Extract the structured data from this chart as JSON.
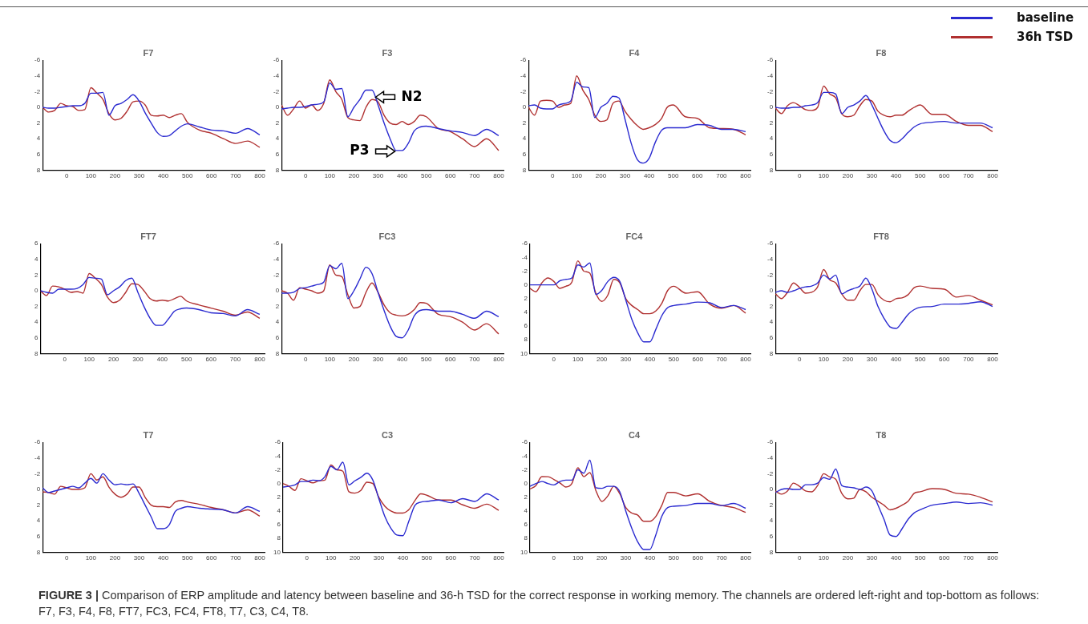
{
  "chart_data": [
    {
      "type": "line",
      "title": "F7",
      "x": [
        -100,
        -75,
        -50,
        -25,
        0,
        25,
        50,
        75,
        100,
        125,
        150,
        175,
        200,
        225,
        250,
        275,
        300,
        325,
        350,
        375,
        400,
        425,
        450,
        475,
        500,
        550,
        600,
        650,
        700,
        750,
        800
      ],
      "xlim": [
        -100,
        820
      ],
      "xticks": [
        0,
        100,
        200,
        300,
        400,
        500,
        600,
        700,
        800
      ],
      "ylim": [
        8,
        -6
      ],
      "yticks": [
        -6,
        -4,
        -2,
        0,
        2,
        4,
        6,
        8
      ],
      "grid": false,
      "legend": false,
      "marker": "none",
      "series": [
        {
          "color": "#2a2ad0",
          "values": [
            0,
            0.1,
            0.1,
            0,
            -0.1,
            -0.2,
            -0.2,
            -0.5,
            -1.8,
            -1.8,
            -1.9,
            1.0,
            -0.2,
            -0.5,
            -1.0,
            -1.6,
            -0.8,
            0.7,
            2.0,
            3.2,
            3.7,
            3.6,
            3.0,
            2.4,
            2.1,
            2.5,
            2.9,
            3.0,
            3.3,
            2.7,
            3.5
          ]
        },
        {
          "color": "#b03030",
          "values": [
            0,
            0.6,
            0.4,
            -0.5,
            -0.2,
            -0.1,
            0.4,
            0.3,
            -2.5,
            -1.8,
            -1.0,
            0.8,
            1.6,
            1.4,
            0.5,
            -0.7,
            -0.8,
            -0.3,
            1.0,
            1.1,
            1.0,
            1.3,
            1.0,
            0.8,
            1.9,
            2.9,
            3.3,
            4.0,
            4.6,
            4.3,
            5.1
          ]
        }
      ]
    },
    {
      "type": "line",
      "title": "F3",
      "x": [
        -100,
        -75,
        -50,
        -25,
        0,
        25,
        50,
        75,
        100,
        125,
        150,
        175,
        200,
        225,
        250,
        275,
        300,
        325,
        350,
        375,
        400,
        425,
        450,
        475,
        500,
        550,
        600,
        650,
        700,
        750,
        800
      ],
      "xlim": [
        -100,
        820
      ],
      "xticks": [
        0,
        100,
        200,
        300,
        400,
        500,
        600,
        700,
        800
      ],
      "ylim": [
        8,
        -6
      ],
      "yticks": [
        -6,
        -4,
        -2,
        0,
        2,
        4,
        6,
        8
      ],
      "grid": false,
      "legend": false,
      "marker": "none",
      "annotations": [
        {
          "text": "N2",
          "x": 290,
          "y": -1.3
        },
        {
          "text": "P3",
          "x": 370,
          "y": 5.6
        }
      ],
      "series": [
        {
          "color": "#2a2ad0",
          "values": [
            0.2,
            0.1,
            0,
            0,
            -0.1,
            -0.3,
            -0.4,
            -0.7,
            -3.1,
            -2.3,
            -2.4,
            1.2,
            0.0,
            -1.0,
            -2.2,
            -2.2,
            -0.3,
            2.0,
            4.0,
            5.5,
            5.5,
            4.6,
            3.0,
            2.5,
            2.4,
            2.7,
            3.0,
            3.2,
            3.6,
            2.8,
            3.6
          ]
        },
        {
          "color": "#b03030",
          "values": [
            -0.3,
            1.0,
            0.2,
            -0.8,
            0.1,
            -0.3,
            0.4,
            -0.5,
            -3.5,
            -2.0,
            -1.0,
            1.3,
            1.6,
            1.7,
            0.0,
            -1.0,
            -0.7,
            1.0,
            2.0,
            2.2,
            1.8,
            2.2,
            1.8,
            1.0,
            1.2,
            2.7,
            3.1,
            4.0,
            5.0,
            4.0,
            5.5
          ]
        }
      ]
    },
    {
      "type": "line",
      "title": "F4",
      "x": [
        -100,
        -75,
        -50,
        -25,
        0,
        25,
        50,
        75,
        100,
        125,
        150,
        175,
        200,
        225,
        250,
        275,
        300,
        325,
        350,
        375,
        400,
        425,
        450,
        475,
        500,
        550,
        600,
        650,
        700,
        750,
        800
      ],
      "xlim": [
        -100,
        820
      ],
      "xticks": [
        0,
        100,
        200,
        300,
        400,
        500,
        600,
        700,
        800
      ],
      "ylim": [
        8,
        -6
      ],
      "yticks": [
        -6,
        -4,
        -2,
        0,
        2,
        4,
        6,
        8
      ],
      "grid": false,
      "legend": false,
      "marker": "none",
      "series": [
        {
          "color": "#2a2ad0",
          "values": [
            -0.2,
            -0.3,
            0.1,
            0.2,
            0.2,
            -0.3,
            -0.5,
            -0.8,
            -3.2,
            -2.6,
            -2.5,
            1.3,
            0.0,
            -0.5,
            -1.4,
            -1.2,
            1.5,
            4.5,
            6.6,
            7.1,
            6.5,
            4.5,
            3.0,
            2.6,
            2.6,
            2.6,
            2.2,
            2.3,
            2.8,
            2.8,
            3.1
          ]
        },
        {
          "color": "#b03030",
          "values": [
            0,
            1.0,
            -0.8,
            -0.9,
            -0.8,
            0.0,
            -0.3,
            -0.5,
            -4.0,
            -2.2,
            -1.0,
            1.0,
            1.8,
            1.6,
            -0.5,
            -0.8,
            0.5,
            1.5,
            2.3,
            2.8,
            2.6,
            2.2,
            1.5,
            0.0,
            -0.3,
            1.2,
            1.4,
            2.6,
            2.7,
            2.8,
            3.5
          ]
        }
      ]
    },
    {
      "type": "line",
      "title": "F8",
      "x": [
        -100,
        -75,
        -50,
        -25,
        0,
        25,
        50,
        75,
        100,
        125,
        150,
        175,
        200,
        225,
        250,
        275,
        300,
        325,
        350,
        375,
        400,
        425,
        450,
        475,
        500,
        550,
        600,
        650,
        700,
        750,
        800
      ],
      "xlim": [
        -100,
        820
      ],
      "xticks": [
        0,
        100,
        200,
        300,
        400,
        500,
        600,
        700,
        800
      ],
      "ylim": [
        8,
        -6
      ],
      "yticks": [
        -6,
        -4,
        -2,
        0,
        2,
        4,
        6,
        8
      ],
      "grid": false,
      "legend": "top right",
      "marker": "none",
      "series": [
        {
          "name": "baseline",
          "color": "#2a2ad0",
          "values": [
            0,
            0.1,
            0.1,
            0,
            0,
            -0.2,
            -0.3,
            -0.6,
            -1.9,
            -1.9,
            -1.7,
            0.8,
            0,
            -0.3,
            -0.8,
            -1.5,
            -0.3,
            1.4,
            3.0,
            4.2,
            4.5,
            4.0,
            3.2,
            2.5,
            2.1,
            1.9,
            1.8,
            2.0,
            2.0,
            2.0,
            2.6
          ]
        },
        {
          "name": "36h TSD",
          "color": "#b03030",
          "values": [
            0.1,
            0.8,
            -0.2,
            -0.6,
            -0.2,
            0.3,
            0.4,
            0,
            -2.7,
            -1.7,
            -1.2,
            0.8,
            1.2,
            1.0,
            -0.2,
            -1.0,
            -0.8,
            0.5,
            1.0,
            1.2,
            1.0,
            1.0,
            0.5,
            0,
            -0.3,
            0.9,
            0.9,
            1.8,
            2.3,
            2.3,
            3.1
          ]
        }
      ]
    },
    {
      "type": "line",
      "title": "FT7",
      "x": [
        -100,
        -75,
        -50,
        -25,
        0,
        25,
        50,
        75,
        100,
        125,
        150,
        175,
        200,
        225,
        250,
        275,
        300,
        325,
        350,
        375,
        400,
        425,
        450,
        475,
        500,
        550,
        600,
        650,
        700,
        750,
        800
      ],
      "xlim": [
        -100,
        820
      ],
      "xticks": [
        0,
        100,
        200,
        300,
        400,
        500,
        600,
        700,
        800
      ],
      "ylim": [
        8,
        -6
      ],
      "yticks": [
        {
          "value": -6,
          "label": "6"
        },
        {
          "value": -4,
          "label": "4"
        },
        {
          "value": -2,
          "label": "2"
        },
        0,
        2,
        4,
        6,
        8
      ],
      "grid": false,
      "legend": false,
      "marker": "none",
      "series": [
        {
          "color": "#2a2ad0",
          "values": [
            0,
            0.2,
            0.3,
            -0.2,
            -0.2,
            -0.2,
            -0.3,
            -0.8,
            -1.7,
            -1.6,
            -1.5,
            0.5,
            0,
            -0.5,
            -1.3,
            -1.6,
            0.2,
            2.0,
            3.5,
            4.4,
            4.4,
            3.6,
            2.6,
            2.3,
            2.2,
            2.4,
            2.8,
            2.9,
            3.2,
            2.4,
            3.0
          ]
        },
        {
          "color": "#b03030",
          "values": [
            0,
            0.6,
            -0.6,
            -0.5,
            -0.2,
            0.2,
            0.1,
            0.3,
            -2.2,
            -1.6,
            -0.8,
            0.8,
            1.5,
            1.2,
            0.2,
            -0.9,
            -0.8,
            0,
            1.0,
            1.3,
            1.2,
            1.3,
            1.0,
            0.7,
            1.3,
            1.8,
            2.2,
            2.6,
            3.1,
            2.7,
            3.5
          ]
        }
      ]
    },
    {
      "type": "line",
      "title": "FC3",
      "x": [
        -100,
        -75,
        -50,
        -25,
        0,
        25,
        50,
        75,
        100,
        125,
        150,
        175,
        200,
        225,
        250,
        275,
        300,
        325,
        350,
        375,
        400,
        425,
        450,
        475,
        500,
        550,
        600,
        650,
        700,
        750,
        800
      ],
      "xlim": [
        -100,
        820
      ],
      "xticks": [
        0,
        100,
        200,
        300,
        400,
        500,
        600,
        700,
        800
      ],
      "ylim": [
        8,
        -6
      ],
      "yticks": [
        -6,
        -4,
        -2,
        0,
        2,
        4,
        6,
        8
      ],
      "grid": false,
      "legend": false,
      "marker": "none",
      "series": [
        {
          "color": "#2a2ad0",
          "values": [
            0.3,
            0.3,
            0.2,
            -0.3,
            -0.4,
            -0.6,
            -0.8,
            -1.1,
            -3.2,
            -2.8,
            -3.5,
            1.0,
            0.0,
            -1.5,
            -3.0,
            -2.2,
            0.2,
            2.5,
            4.5,
            5.8,
            6.0,
            5.0,
            3.2,
            2.5,
            2.4,
            2.6,
            2.6,
            3.0,
            3.5,
            2.6,
            3.3
          ]
        },
        {
          "color": "#b03030",
          "values": [
            0,
            0.3,
            1.2,
            -0.4,
            -0.2,
            0,
            0.3,
            0,
            -3.3,
            -2.0,
            -1.8,
            0.5,
            2.2,
            2.0,
            0.2,
            -1.0,
            0.2,
            1.8,
            2.8,
            3.1,
            3.2,
            3.0,
            2.4,
            1.5,
            1.6,
            3.0,
            3.3,
            4.0,
            5.0,
            4.2,
            5.5
          ]
        }
      ]
    },
    {
      "type": "line",
      "title": "FC4",
      "x": [
        -100,
        -75,
        -50,
        -25,
        0,
        25,
        50,
        75,
        100,
        125,
        150,
        175,
        200,
        225,
        250,
        275,
        300,
        325,
        350,
        375,
        400,
        425,
        450,
        475,
        500,
        550,
        600,
        650,
        700,
        750,
        800
      ],
      "xlim": [
        -100,
        820
      ],
      "xticks": [
        0,
        100,
        200,
        300,
        400,
        500,
        600,
        700,
        800
      ],
      "ylim": [
        10,
        -6
      ],
      "yticks": [
        -6,
        -4,
        -2,
        0,
        2,
        4,
        6,
        8,
        10
      ],
      "grid": false,
      "legend": false,
      "marker": "none",
      "series": [
        {
          "color": "#2a2ad0",
          "values": [
            0,
            0,
            0,
            0,
            0,
            -0.6,
            -0.8,
            -1.0,
            -2.9,
            -2.6,
            -3.2,
            1.4,
            0.8,
            -0.5,
            -1.1,
            -0.5,
            2.2,
            5.0,
            7.0,
            8.3,
            8.3,
            6.5,
            4.5,
            3.3,
            3.0,
            2.8,
            2.5,
            2.6,
            3.3,
            3.0,
            3.6
          ]
        },
        {
          "color": "#b03030",
          "values": [
            0.5,
            1.0,
            -0.3,
            -1.0,
            -0.5,
            0.5,
            0.2,
            -0.4,
            -3.5,
            -2.0,
            -1.7,
            1.2,
            2.4,
            1.5,
            -0.8,
            -0.3,
            2.0,
            3.0,
            3.6,
            4.2,
            4.2,
            3.8,
            2.7,
            0.8,
            0.2,
            1.2,
            1.0,
            2.8,
            3.4,
            3.0,
            4.1
          ]
        }
      ]
    },
    {
      "type": "line",
      "title": "FT8",
      "x": [
        -100,
        -75,
        -50,
        -25,
        0,
        25,
        50,
        75,
        100,
        125,
        150,
        175,
        200,
        225,
        250,
        275,
        300,
        325,
        350,
        375,
        400,
        425,
        450,
        475,
        500,
        550,
        600,
        650,
        700,
        750,
        800
      ],
      "xlim": [
        -100,
        820
      ],
      "xticks": [
        0,
        100,
        200,
        300,
        400,
        500,
        600,
        700,
        800
      ],
      "ylim": [
        8,
        -6
      ],
      "yticks": [
        -6,
        -4,
        -2,
        0,
        2,
        4,
        6,
        8
      ],
      "grid": false,
      "legend": false,
      "marker": "none",
      "series": [
        {
          "color": "#2a2ad0",
          "values": [
            0.2,
            0,
            0.2,
            0,
            -0.3,
            -0.5,
            -0.6,
            -1.0,
            -2.0,
            -1.5,
            -2.0,
            0.4,
            0,
            -0.3,
            -0.6,
            -1.6,
            -0.2,
            2.0,
            3.5,
            4.6,
            4.8,
            4.0,
            3.0,
            2.4,
            2.1,
            2.0,
            1.7,
            1.7,
            1.6,
            1.4,
            2.0
          ]
        },
        {
          "color": "#b03030",
          "values": [
            0.4,
            1.0,
            0.2,
            -1.0,
            -0.4,
            0.3,
            0.2,
            -0.5,
            -2.7,
            -1.4,
            -1.0,
            0.4,
            1.2,
            1.2,
            0,
            -0.8,
            -0.8,
            0.5,
            1.2,
            1.4,
            1.0,
            0.9,
            0.5,
            -0.4,
            -0.6,
            -0.3,
            -0.2,
            0.8,
            0.6,
            1.2,
            1.8
          ]
        }
      ]
    },
    {
      "type": "line",
      "title": "T7",
      "x": [
        -100,
        -75,
        -50,
        -25,
        0,
        25,
        50,
        75,
        100,
        125,
        150,
        175,
        200,
        225,
        250,
        275,
        300,
        325,
        350,
        375,
        400,
        425,
        450,
        475,
        500,
        550,
        600,
        650,
        700,
        750,
        800
      ],
      "xlim": [
        -100,
        820
      ],
      "xticks": [
        0,
        100,
        200,
        300,
        400,
        500,
        600,
        700,
        800
      ],
      "ylim": [
        8,
        -6
      ],
      "yticks": [
        -6,
        -4,
        -2,
        0,
        2,
        4,
        6,
        8
      ],
      "grid": false,
      "legend": false,
      "marker": "none",
      "series": [
        {
          "color": "#2a2ad0",
          "values": [
            -0.2,
            0.4,
            0.2,
            0,
            -0.2,
            -0.4,
            -0.2,
            -0.8,
            -1.4,
            -0.8,
            -2.0,
            -1.2,
            -0.6,
            -0.7,
            -0.6,
            -0.7,
            0.5,
            2.0,
            3.5,
            5.0,
            5.0,
            4.5,
            2.8,
            2.4,
            2.2,
            2.4,
            2.5,
            2.6,
            3.0,
            2.2,
            2.8
          ]
        },
        {
          "color": "#b03030",
          "values": [
            0.3,
            0.4,
            0.6,
            -0.4,
            -0.2,
            0,
            0,
            -0.2,
            -2.0,
            -1.2,
            -1.6,
            -0.3,
            0.6,
            1.0,
            0.6,
            -0.3,
            -0.3,
            1.0,
            2.0,
            2.2,
            2.2,
            2.3,
            1.6,
            1.4,
            1.6,
            1.9,
            2.3,
            2.6,
            3.0,
            2.6,
            3.4
          ]
        }
      ]
    },
    {
      "type": "line",
      "title": "C3",
      "x": [
        -100,
        -75,
        -50,
        -25,
        0,
        25,
        50,
        75,
        100,
        125,
        150,
        175,
        200,
        225,
        250,
        275,
        300,
        325,
        350,
        375,
        400,
        425,
        450,
        475,
        500,
        550,
        600,
        650,
        700,
        750,
        800
      ],
      "xlim": [
        -100,
        820
      ],
      "xticks": [
        0,
        100,
        200,
        300,
        400,
        500,
        600,
        700,
        800
      ],
      "ylim": [
        10,
        -6
      ],
      "yticks": [
        -6,
        -4,
        -2,
        0,
        2,
        4,
        6,
        8,
        10
      ],
      "grid": false,
      "legend": false,
      "marker": "none",
      "series": [
        {
          "color": "#2a2ad0",
          "values": [
            0.5,
            0.4,
            0.2,
            -0.3,
            -0.3,
            -0.5,
            -0.4,
            -1.0,
            -2.5,
            -2.0,
            -3.1,
            0.2,
            -0.4,
            -0.9,
            -1.5,
            -0.5,
            2.2,
            4.8,
            6.5,
            7.5,
            7.6,
            5.5,
            3.2,
            2.7,
            2.6,
            2.4,
            2.8,
            2.2,
            2.6,
            1.5,
            2.4
          ]
        },
        {
          "color": "#b03030",
          "values": [
            0,
            0.4,
            1.0,
            -0.7,
            -0.4,
            -0.1,
            -0.4,
            -0.5,
            -2.7,
            -2.0,
            -1.8,
            1.2,
            1.4,
            1.0,
            -0.2,
            0,
            2.0,
            3.3,
            4.0,
            4.3,
            4.3,
            3.8,
            2.5,
            1.5,
            1.7,
            2.4,
            2.4,
            3.1,
            3.6,
            3.0,
            3.9
          ]
        }
      ]
    },
    {
      "type": "line",
      "title": "C4",
      "x": [
        -100,
        -75,
        -50,
        -25,
        0,
        25,
        50,
        75,
        100,
        125,
        150,
        175,
        200,
        225,
        250,
        275,
        300,
        325,
        350,
        375,
        400,
        425,
        450,
        475,
        500,
        550,
        600,
        650,
        700,
        750,
        800
      ],
      "xlim": [
        -100,
        820
      ],
      "xticks": [
        0,
        100,
        200,
        300,
        400,
        500,
        600,
        700,
        800
      ],
      "ylim": [
        10,
        -6
      ],
      "yticks": [
        -6,
        -4,
        -2,
        0,
        2,
        4,
        6,
        8,
        10
      ],
      "grid": false,
      "legend": false,
      "marker": "none",
      "series": [
        {
          "color": "#2a2ad0",
          "values": [
            0.4,
            0,
            -0.3,
            0,
            0.2,
            -0.3,
            -0.5,
            -0.5,
            -2.0,
            -1.5,
            -3.4,
            0.6,
            0.7,
            0.4,
            0.4,
            1.2,
            4.0,
            6.5,
            8.5,
            9.6,
            9.6,
            7.5,
            4.8,
            3.5,
            3.3,
            3.2,
            2.9,
            2.9,
            3.2,
            2.9,
            3.6
          ]
        },
        {
          "color": "#b03030",
          "values": [
            0.8,
            0.3,
            -1.0,
            -1.0,
            -0.6,
            -0.1,
            0.5,
            0,
            -2.3,
            -1.0,
            -1.6,
            1.0,
            2.6,
            1.8,
            0.4,
            1.5,
            3.5,
            4.3,
            4.6,
            5.5,
            5.5,
            4.8,
            3.2,
            1.3,
            1.3,
            1.8,
            1.5,
            2.6,
            3.2,
            3.5,
            4.2
          ]
        }
      ]
    },
    {
      "type": "line",
      "title": "T8",
      "x": [
        -100,
        -75,
        -50,
        -25,
        0,
        25,
        50,
        75,
        100,
        125,
        150,
        175,
        200,
        225,
        250,
        275,
        300,
        325,
        350,
        375,
        400,
        425,
        450,
        475,
        500,
        550,
        600,
        650,
        700,
        750,
        800
      ],
      "xlim": [
        -100,
        820
      ],
      "xticks": [
        0,
        100,
        200,
        300,
        400,
        500,
        600,
        700,
        800
      ],
      "ylim": [
        8,
        -6
      ],
      "yticks": [
        -6,
        -4,
        -2,
        0,
        2,
        4,
        6,
        8
      ],
      "grid": false,
      "legend": false,
      "marker": "none",
      "annotations": [
        "FIGURE 3 | Comparison of ERP amplitude and latency between baseline and 36-h TSD for the correct response in working memory. The channels are ordered left-right and top-bottom as follows: F7, F3, F4, F8, FT7, FC3, FC4, FT8, T7, C3, C4, T8."
      ],
      "series": [
        {
          "color": "#2a2ad0",
          "values": [
            0.4,
            0,
            -0.1,
            0,
            0,
            -0.6,
            -0.6,
            -0.8,
            -1.5,
            -1.3,
            -2.6,
            -0.5,
            -0.3,
            -0.2,
            0,
            -0.3,
            0.2,
            2.0,
            3.8,
            5.8,
            6.0,
            5.0,
            3.8,
            3.0,
            2.6,
            2.0,
            1.8,
            1.6,
            1.8,
            1.7,
            2.0
          ]
        },
        {
          "color": "#b03030",
          "values": [
            0.2,
            0.6,
            0.2,
            -0.8,
            -0.4,
            0.2,
            0.3,
            -0.5,
            -2.0,
            -1.6,
            -1.3,
            0.5,
            1.2,
            1.1,
            0,
            0.3,
            1.0,
            1.5,
            2.0,
            2.6,
            2.4,
            2.0,
            1.5,
            0.5,
            0.3,
            -0.1,
            0,
            0.5,
            0.6,
            1.0,
            1.6
          ]
        }
      ]
    }
  ]
}
